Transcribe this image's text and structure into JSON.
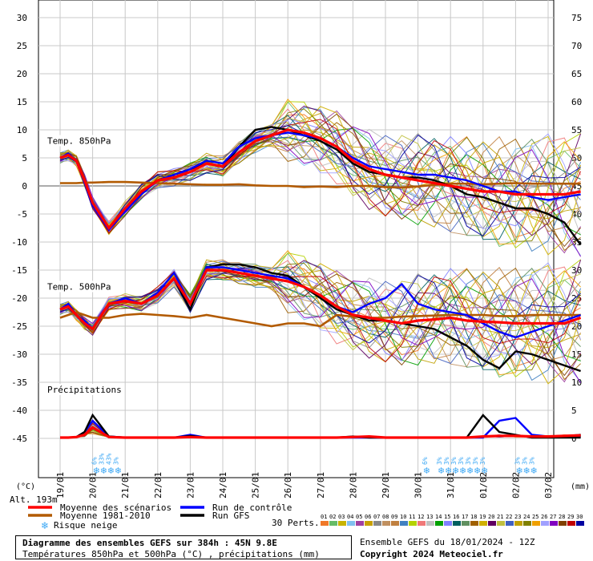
{
  "chart_data": {
    "type": "line",
    "x_tick_labels": [
      "19/01",
      "20/01",
      "21/01",
      "22/01",
      "23/01",
      "24/01",
      "25/01",
      "26/01",
      "27/01",
      "28/01",
      "29/01",
      "30/01",
      "31/01",
      "01/02",
      "02/02",
      "03/02"
    ],
    "left_axis": {
      "unit": "(°C)",
      "ticks": [
        30,
        25,
        20,
        15,
        10,
        5,
        0,
        -5,
        -10,
        -15,
        -20,
        -25,
        -30,
        -35,
        -40,
        -45
      ]
    },
    "right_axis": {
      "unit": "(mm)",
      "ticks": [
        75,
        70,
        65,
        60,
        55,
        50,
        45,
        40,
        35,
        30,
        25,
        20,
        15,
        10,
        5,
        0
      ]
    },
    "altitude_label": "Alt. 193m",
    "panels": [
      {
        "label": "Temp. 850hPa",
        "x": [
          0,
          0.25,
          0.5,
          0.75,
          1,
          1.5,
          2,
          2.5,
          3,
          3.5,
          4,
          4.5,
          5,
          5.5,
          6,
          6.5,
          7,
          7.5,
          8,
          8.5,
          9,
          9.5,
          10,
          10.5,
          11,
          11.5,
          12,
          12.5,
          13,
          13.5,
          14,
          14.5,
          15,
          15.5,
          16
        ],
        "series": [
          {
            "name": "Moyenne des scénarios",
            "color": "#ff0000",
            "values": [
              5,
              5.5,
              4.5,
              1,
              -3,
              -7.5,
              -4,
              -1,
              1,
              1.5,
              2.5,
              4,
              3.5,
              6,
              8,
              9,
              10,
              9.5,
              8.5,
              7,
              4.5,
              3,
              2,
              1.5,
              1,
              0.5,
              0,
              -0.5,
              -1,
              -1,
              -1.5,
              -1.5,
              -1.5,
              -1.5,
              -1
            ]
          },
          {
            "name": "Run de contrôle",
            "color": "#0000ff",
            "values": [
              5,
              5.8,
              4.5,
              0.5,
              -3.5,
              -7.8,
              -4.5,
              -1.5,
              1,
              2,
              3,
              4.5,
              4,
              7,
              8.5,
              9,
              9.5,
              9,
              8.5,
              7,
              5,
              3.5,
              3,
              2.5,
              2,
              2,
              1.5,
              1,
              0,
              -1,
              -1,
              -2,
              -2.5,
              -2,
              -1.5
            ]
          },
          {
            "name": "Run GFS",
            "color": "#000000",
            "values": [
              5,
              5.5,
              4.5,
              0.5,
              -3.5,
              -7.5,
              -4,
              -1,
              1,
              2,
              3,
              4,
              3.5,
              7,
              10,
              10.5,
              10,
              9,
              8,
              6.5,
              4,
              2.5,
              2,
              1.5,
              1.5,
              1,
              0,
              -1.5,
              -2,
              -3,
              -4,
              -4,
              -5,
              -6.5,
              -10.5
            ]
          },
          {
            "name": "Moyenne 1981-2010",
            "color": "#b25a00",
            "values": [
              0.5,
              0.5,
              0.5,
              0.6,
              0.6,
              0.7,
              0.7,
              0.6,
              0.5,
              0.4,
              0.3,
              0.2,
              0.2,
              0.3,
              0.1,
              0,
              0,
              -0.2,
              -0.1,
              -0.2,
              0,
              0,
              -0.2,
              -0.3,
              -0.1,
              0.2,
              0.4,
              0.4,
              0.3,
              0.4,
              0.5,
              0.4,
              0.4,
              0.4,
              0.4
            ]
          }
        ]
      },
      {
        "label": "Temp. 500hPa",
        "x": [
          0,
          0.25,
          0.5,
          0.75,
          1,
          1.5,
          2,
          2.5,
          3,
          3.5,
          4,
          4.5,
          5,
          5.5,
          6,
          6.5,
          7,
          7.5,
          8,
          8.5,
          9,
          9.5,
          10,
          10.5,
          11,
          11.5,
          12,
          12.5,
          13,
          13.5,
          14,
          14.5,
          15,
          15.5,
          16
        ],
        "series": [
          {
            "name": "Moyenne des scénarios",
            "color": "#ff0000",
            "values": [
              -22,
              -21.5,
              -23,
              -24.5,
              -25.5,
              -21,
              -20.5,
              -21,
              -19.5,
              -16.5,
              -21,
              -15,
              -15,
              -15.5,
              -16,
              -16.5,
              -17,
              -18,
              -19.5,
              -21.5,
              -23,
              -23.5,
              -24,
              -24.5,
              -24,
              -23.8,
              -23.5,
              -24,
              -24.2,
              -24.3,
              -24.5,
              -24.5,
              -24.5,
              -24.5,
              -23.5
            ]
          },
          {
            "name": "Run de contrôle",
            "color": "#0000ff",
            "values": [
              -22,
              -21,
              -23,
              -24,
              -25.5,
              -21,
              -20,
              -21,
              -19,
              -15.5,
              -21,
              -14.5,
              -14.5,
              -15,
              -15.5,
              -16,
              -16.5,
              -18,
              -19.5,
              -21.5,
              -22.5,
              -21,
              -20,
              -17.5,
              -21,
              -22,
              -22.5,
              -23,
              -24.5,
              -26,
              -27,
              -26,
              -25,
              -24,
              -23
            ]
          },
          {
            "name": "Run GFS",
            "color": "#000000",
            "values": [
              -22,
              -21.5,
              -23,
              -24.5,
              -25.5,
              -21,
              -20.5,
              -21,
              -19.5,
              -16.5,
              -22,
              -14.5,
              -14,
              -14,
              -14.5,
              -15.5,
              -16,
              -18,
              -20,
              -22,
              -23,
              -24,
              -24,
              -24.5,
              -25,
              -25.5,
              -27,
              -28.5,
              -31,
              -32.5,
              -29.5,
              -30,
              -31,
              -32,
              -33
            ]
          },
          {
            "name": "Moyenne 1981-2010",
            "color": "#b25a00",
            "values": [
              -23.5,
              -23,
              -22.5,
              -23,
              -23.5,
              -23.5,
              -23,
              -22.8,
              -23,
              -23.2,
              -23.5,
              -23,
              -23.5,
              -24,
              -24.5,
              -25,
              -24.5,
              -24.5,
              -25,
              -23,
              -23.3,
              -23.5,
              -23.5,
              -23.3,
              -23.2,
              -23.1,
              -23,
              -23,
              -23,
              -23.2,
              -23.2,
              -23,
              -23,
              -23,
              -23
            ]
          }
        ]
      },
      {
        "label": "Précipitations",
        "x": [
          0,
          0.25,
          0.5,
          0.75,
          1,
          1.5,
          2,
          2.5,
          3,
          3.5,
          4,
          4.5,
          5,
          5.5,
          6,
          6.5,
          7,
          7.5,
          8,
          8.5,
          9,
          9.5,
          10,
          10.5,
          11,
          11.5,
          12,
          12.5,
          13,
          13.5,
          14,
          14.5,
          15,
          15.5,
          16
        ],
        "series": [
          {
            "name": "Moyenne des scénarios",
            "color": "#ff0000",
            "values": [
              0,
              0,
              0.1,
              0.5,
              1.8,
              0.1,
              0,
              0,
              0,
              0,
              0.1,
              0,
              0,
              0,
              0,
              0,
              0,
              0,
              0,
              0,
              0.1,
              0.2,
              0,
              0,
              0,
              0,
              0,
              0,
              0.2,
              0.3,
              0.3,
              0.2,
              0.2,
              0.3,
              0.4
            ]
          },
          {
            "name": "Run GFS",
            "color": "#000000",
            "values": [
              0,
              0,
              0.1,
              1,
              4,
              0.2,
              0,
              0,
              0,
              0,
              0.3,
              0,
              0,
              0,
              0,
              0,
              0,
              0,
              0,
              0,
              0.2,
              0,
              0,
              0,
              0,
              0,
              0,
              0,
              4,
              1,
              0.5,
              0,
              0,
              0,
              0
            ]
          },
          {
            "name": "Run de contrôle",
            "color": "#0000ff",
            "values": [
              0,
              0,
              0.1,
              1,
              3,
              0.2,
              0,
              0,
              0,
              0,
              0.5,
              0,
              0,
              0,
              0,
              0,
              0,
              0,
              0,
              0,
              0,
              0,
              0,
              0,
              0,
              0,
              0,
              0,
              0,
              3,
              3.5,
              0.5,
              0.2,
              0.1,
              0.1
            ]
          }
        ]
      }
    ],
    "snow_risk": [
      {
        "x": 1.15,
        "labels": [
          "6%",
          "33%",
          "43%",
          "3%"
        ]
      },
      {
        "x": 11.3,
        "labels": [
          "6%"
        ]
      },
      {
        "x": 11.75,
        "labels": [
          "3%",
          "3%",
          "3%",
          "3%",
          "3%",
          "3%",
          "3%"
        ]
      },
      {
        "x": 14.15,
        "labels": [
          "3%",
          "3%",
          "3%"
        ]
      }
    ],
    "legend": [
      {
        "label": "Moyenne des scénarios",
        "color": "#ff0000"
      },
      {
        "label": "Run de contrôle",
        "color": "#0000ff"
      },
      {
        "label": "Moyenne 1981-2010",
        "color": "#b25a00"
      },
      {
        "label": "Run GFS",
        "color": "#000000"
      },
      {
        "label": "Risque neige",
        "color": "#3fa9f5"
      }
    ],
    "perturbations": {
      "label": "30 Perts.",
      "ids": [
        "01",
        "02",
        "03",
        "04",
        "05",
        "06",
        "07",
        "08",
        "09",
        "10",
        "11",
        "12",
        "13",
        "14",
        "15",
        "16",
        "17",
        "18",
        "19",
        "20",
        "21",
        "22",
        "23",
        "24",
        "25",
        "26",
        "27",
        "28",
        "29",
        "30"
      ],
      "colors": [
        "#f07828",
        "#66bb66",
        "#c8b400",
        "#80c0f0",
        "#a040a0",
        "#c8a000",
        "#888888",
        "#c09060",
        "#c08040",
        "#4080c0",
        "#b4d200",
        "#f07878",
        "#c0c0c0",
        "#00a000",
        "#8080ff",
        "#006060",
        "#609060",
        "#a06000",
        "#d0b000",
        "#600060",
        "#c0c040",
        "#4060c0",
        "#c0a000",
        "#808000",
        "#f0a000",
        "#a0a0ff",
        "#8000c0",
        "#804000",
        "#c00000",
        "#0000a0"
      ]
    }
  },
  "footer": {
    "title": "Diagramme des ensembles GEFS sur 384h : 45N 9.8E",
    "subtitle": "Températures 850hPa et 500hPa (°C) , précipitations (mm)",
    "ensemble_info": "Ensemble GEFS du 18/01/2024 - 12Z",
    "copyright": "Copyright 2024 Meteociel.fr"
  }
}
